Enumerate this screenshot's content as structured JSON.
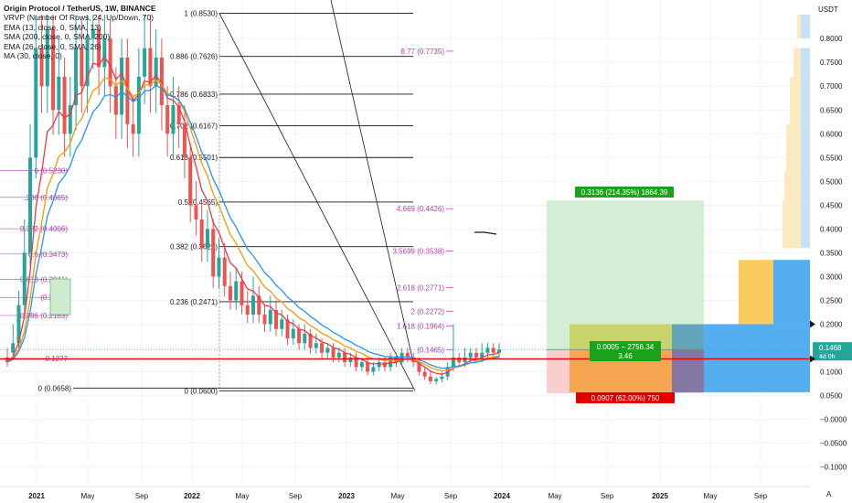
{
  "header": {
    "title": "Origin Protocol / TetherUS, 1W, BINANCE",
    "indicators": [
      "VRVP (Number Of Rows, 24, Up/Down, 70)",
      "EMA (13, close, 0, SMA, 13)",
      "SMA (200, close, 0, SMA, 200)",
      "EMA (26, close, 0, SMA, 26)",
      "MA (30, close, 0)"
    ]
  },
  "axis": {
    "currency": "USDT",
    "corner": "A",
    "y_ticks": [
      "0.8000",
      "0.7500",
      "0.7000",
      "0.6500",
      "0.6000",
      "0.5500",
      "0.5000",
      "0.4500",
      "0.4000",
      "0.3500",
      "0.3000",
      "0.2500",
      "0.2000",
      "0.1500",
      "0.1000",
      "0.0500",
      "−0.0000",
      "−0.0500",
      "−0.1000"
    ],
    "x_ticks": [
      "2021",
      "May",
      "Sep",
      "2022",
      "May",
      "Sep",
      "2023",
      "May",
      "Sep",
      "2024",
      "May",
      "Sep",
      "2025",
      "May",
      "Sep"
    ],
    "price_label": "0.1468",
    "price_countdown": "4d 0h"
  },
  "chart_data": {
    "type": "candlestick",
    "symbol": "Origin Protocol / TetherUS",
    "interval": "1W",
    "exchange": "BINANCE",
    "ylim": [
      -0.12,
      0.85
    ],
    "last_price": 0.1468,
    "candles_approx": [
      [
        0.13,
        0.12,
        0.15
      ],
      [
        0.14,
        0.16,
        0.2
      ],
      [
        0.16,
        0.24,
        0.27
      ],
      [
        0.24,
        0.35,
        0.42
      ],
      [
        0.35,
        0.55,
        0.62
      ],
      [
        0.55,
        0.78,
        0.85
      ],
      [
        0.78,
        0.7,
        0.85
      ],
      [
        0.7,
        0.82,
        0.85
      ],
      [
        0.82,
        0.65,
        0.85
      ],
      [
        0.65,
        0.72,
        0.8
      ],
      [
        0.72,
        0.6,
        0.76
      ],
      [
        0.6,
        0.66,
        0.72
      ],
      [
        0.66,
        0.78,
        0.85
      ],
      [
        0.78,
        0.7,
        0.84
      ],
      [
        0.7,
        0.8,
        0.85
      ],
      [
        0.8,
        0.82,
        0.85
      ],
      [
        0.82,
        0.74,
        0.85
      ],
      [
        0.74,
        0.8,
        0.85
      ],
      [
        0.8,
        0.7,
        0.84
      ],
      [
        0.7,
        0.64,
        0.74
      ],
      [
        0.64,
        0.76,
        0.8
      ],
      [
        0.76,
        0.62,
        0.8
      ],
      [
        0.62,
        0.6,
        0.68
      ],
      [
        0.6,
        0.72,
        0.78
      ],
      [
        0.72,
        0.78,
        0.85
      ],
      [
        0.78,
        0.7,
        0.85
      ],
      [
        0.7,
        0.76,
        0.82
      ],
      [
        0.76,
        0.66,
        0.8
      ],
      [
        0.66,
        0.6,
        0.7
      ],
      [
        0.6,
        0.66,
        0.72
      ],
      [
        0.66,
        0.62,
        0.7
      ],
      [
        0.62,
        0.55,
        0.66
      ],
      [
        0.55,
        0.45,
        0.58
      ],
      [
        0.45,
        0.42,
        0.5
      ],
      [
        0.42,
        0.36,
        0.46
      ],
      [
        0.36,
        0.4,
        0.44
      ],
      [
        0.4,
        0.3,
        0.42
      ],
      [
        0.3,
        0.34,
        0.38
      ],
      [
        0.34,
        0.28,
        0.37
      ],
      [
        0.28,
        0.25,
        0.31
      ],
      [
        0.25,
        0.29,
        0.32
      ],
      [
        0.29,
        0.24,
        0.31
      ],
      [
        0.24,
        0.22,
        0.27
      ],
      [
        0.22,
        0.26,
        0.3
      ],
      [
        0.26,
        0.22,
        0.28
      ],
      [
        0.22,
        0.2,
        0.24
      ],
      [
        0.2,
        0.23,
        0.26
      ],
      [
        0.23,
        0.19,
        0.25
      ],
      [
        0.19,
        0.21,
        0.23
      ],
      [
        0.21,
        0.17,
        0.22
      ],
      [
        0.17,
        0.19,
        0.21
      ],
      [
        0.19,
        0.16,
        0.2
      ],
      [
        0.16,
        0.18,
        0.2
      ],
      [
        0.18,
        0.15,
        0.19
      ],
      [
        0.15,
        0.16,
        0.18
      ],
      [
        0.16,
        0.14,
        0.17
      ],
      [
        0.14,
        0.15,
        0.16
      ],
      [
        0.15,
        0.13,
        0.16
      ],
      [
        0.13,
        0.14,
        0.15
      ],
      [
        0.14,
        0.12,
        0.15
      ],
      [
        0.12,
        0.13,
        0.14
      ],
      [
        0.13,
        0.11,
        0.14
      ],
      [
        0.11,
        0.12,
        0.13
      ],
      [
        0.12,
        0.1,
        0.13
      ],
      [
        0.1,
        0.11,
        0.12
      ],
      [
        0.11,
        0.12,
        0.13
      ],
      [
        0.12,
        0.11,
        0.13
      ],
      [
        0.11,
        0.13,
        0.14
      ],
      [
        0.13,
        0.12,
        0.14
      ],
      [
        0.12,
        0.14,
        0.15
      ],
      [
        0.14,
        0.13,
        0.15
      ],
      [
        0.13,
        0.12,
        0.14
      ],
      [
        0.12,
        0.1,
        0.13
      ],
      [
        0.1,
        0.09,
        0.11
      ],
      [
        0.09,
        0.08,
        0.1
      ],
      [
        0.08,
        0.085,
        0.09
      ],
      [
        0.085,
        0.09,
        0.1
      ],
      [
        0.09,
        0.11,
        0.12
      ],
      [
        0.11,
        0.13,
        0.2
      ],
      [
        0.13,
        0.12,
        0.14
      ],
      [
        0.12,
        0.13,
        0.15
      ],
      [
        0.13,
        0.14,
        0.15
      ],
      [
        0.14,
        0.13,
        0.15
      ],
      [
        0.13,
        0.14,
        0.16
      ],
      [
        0.14,
        0.15,
        0.16
      ],
      [
        0.15,
        0.14,
        0.16
      ],
      [
        0.14,
        0.1468,
        0.16
      ]
    ],
    "moving_averages": [
      {
        "name": "EMA 13",
        "color": "#f23645"
      },
      {
        "name": "EMA 26",
        "color": "#2196f3"
      },
      {
        "name": "MA 30",
        "color": "#ff9800"
      }
    ],
    "horizontal_line": {
      "value": 0.127,
      "color": "#e00000"
    },
    "fib_retracement_right": [
      {
        "label": "1 (0.8530)",
        "value": 0.853
      },
      {
        "label": "0.886 (0.7626)",
        "value": 0.7626
      },
      {
        "label": "0.786 (0.6833)",
        "value": 0.6833
      },
      {
        "label": "0.702 (0.6167)",
        "value": 0.6167
      },
      {
        "label": "0.618 (0.5501)",
        "value": 0.5501
      },
      {
        "label": "0.5 (0.4565)",
        "value": 0.4565
      },
      {
        "label": "0.382 (0.3629)",
        "value": 0.3629
      },
      {
        "label": "0.236 (0.2471)",
        "value": 0.2471
      },
      {
        "label": "0 (0.0600)",
        "value": 0.06
      }
    ],
    "fib_extension": [
      {
        "label": "8.77 (0.7735)",
        "value": 0.7735
      },
      {
        "label": "4.669 (0.4426)",
        "value": 0.4426
      },
      {
        "label": "3.5699 (0.3538)",
        "value": 0.3538
      },
      {
        "label": "2.618 (0.2771)",
        "value": 0.2771
      },
      {
        "label": "2 (0.2272)",
        "value": 0.2272
      },
      {
        "label": "1.618 (0.1964)",
        "value": 0.1964
      },
      {
        "label": "(0.1465)",
        "value": 0.1465
      },
      {
        "label": "0 (0.0658)",
        "value": 0.0658
      }
    ],
    "fib_retracement_left": [
      {
        "label": "0 (0.5230)",
        "value": 0.523
      },
      {
        "label": ".236 (0.4665)",
        "value": 0.4665
      },
      {
        "label": "0.382 (0.4006)",
        "value": 0.4006
      },
      {
        "label": "0.5 (0.3473)",
        "value": 0.3473
      },
      {
        "label": "0.618 (0.2941)",
        "value": 0.2941
      },
      {
        "label": "(0.2562)",
        "value": 0.2562
      },
      {
        "label": "0.786 (0.2183)",
        "value": 0.2183
      },
      {
        "label": "0.1277",
        "value": 0.1277
      },
      {
        "label": "0 (0.0658)",
        "value": 0.0658
      }
    ],
    "position": {
      "entry": 0.1465,
      "target": 0.46,
      "stop": 0.055,
      "target_label": "0.3136 (214.35%) 1864.39",
      "entry_label": "0.0005 − 2756.34",
      "ratio_label": "3.46",
      "stop_label": "0.0907 (62.00%) 750"
    }
  }
}
